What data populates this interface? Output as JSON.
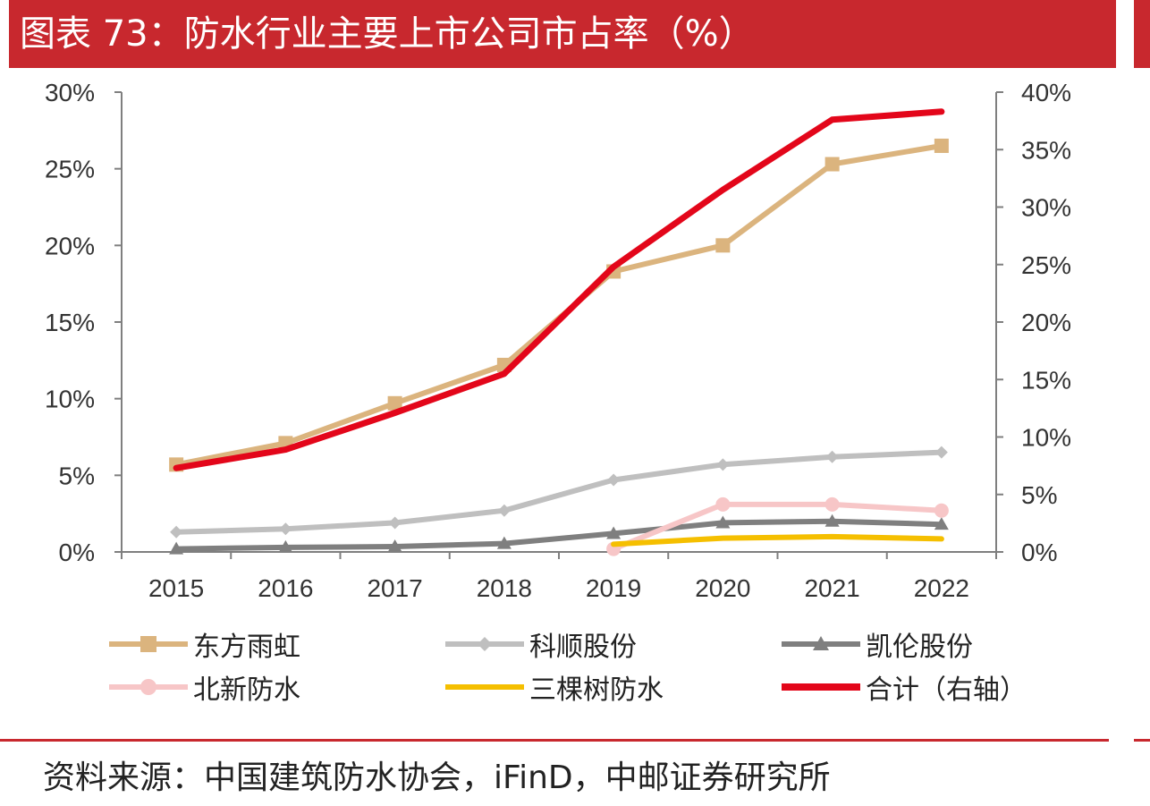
{
  "title": "图表 73：防水行业主要上市公司市占率（%）",
  "source": "资料来源：中国建筑防水协会，iFinD，中邮证券研究所",
  "chart_data": {
    "type": "line",
    "categories": [
      "2015",
      "2016",
      "2017",
      "2018",
      "2019",
      "2020",
      "2021",
      "2022"
    ],
    "y_left": {
      "min": 0,
      "max": 30,
      "ticks": [
        0,
        5,
        10,
        15,
        20,
        25,
        30
      ],
      "tick_labels": [
        "0%",
        "5%",
        "10%",
        "15%",
        "20%",
        "25%",
        "30%"
      ]
    },
    "y_right": {
      "min": 0,
      "max": 40,
      "ticks": [
        0,
        5,
        10,
        15,
        20,
        25,
        30,
        35,
        40
      ],
      "tick_labels": [
        "0%",
        "5%",
        "10%",
        "15%",
        "20%",
        "25%",
        "30%",
        "35%",
        "40%"
      ]
    },
    "series": [
      {
        "name": "东方雨虹",
        "axis": "left",
        "color": "#dbb47e",
        "marker": "square",
        "values": [
          5.7,
          7.1,
          9.7,
          12.2,
          18.3,
          20.0,
          25.3,
          26.5
        ]
      },
      {
        "name": "科顺股份",
        "axis": "left",
        "color": "#bfbfbf",
        "marker": "diamond",
        "values": [
          1.3,
          1.5,
          1.9,
          2.7,
          4.7,
          5.7,
          6.2,
          6.5
        ]
      },
      {
        "name": "凯伦股份",
        "axis": "left",
        "color": "#7f7f7f",
        "marker": "triangle",
        "values": [
          0.2,
          0.3,
          0.35,
          0.55,
          1.2,
          1.9,
          2.0,
          1.8
        ]
      },
      {
        "name": "北新防水",
        "axis": "left",
        "color": "#f7c6c7",
        "marker": "circle",
        "values": [
          null,
          null,
          null,
          null,
          0.2,
          3.1,
          3.1,
          2.7
        ]
      },
      {
        "name": "三棵树防水",
        "axis": "left",
        "color": "#f5bf00",
        "marker": "none",
        "values": [
          null,
          null,
          null,
          null,
          0.5,
          0.9,
          1.0,
          0.85
        ]
      },
      {
        "name": "合计（右轴）",
        "axis": "right",
        "color": "#e3061a",
        "marker": "none",
        "values": [
          7.3,
          8.9,
          12.1,
          15.5,
          24.8,
          31.5,
          37.6,
          38.3
        ]
      }
    ]
  }
}
